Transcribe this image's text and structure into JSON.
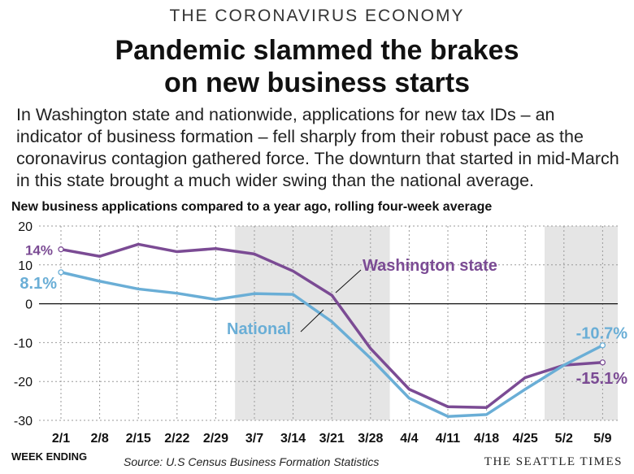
{
  "kicker": "THE CORONAVIRUS ECONOMY",
  "headline_line1": "Pandemic slammed the brakes",
  "headline_line2": "on new business starts",
  "dek": "In Washington state and nationwide, applications for new tax IDs – an indicator of business formation – fell sharply from their robust pace as the coronavirus contagion gathered force. The downturn that started in mid-March in this state brought a much wider swing than the national average.",
  "footer": {
    "week_ending": "WEEK ENDING",
    "source": "Source: U.S Census Business Formation Statistics",
    "brand": "THE SEATTLE TIMES"
  },
  "colors": {
    "washington": "#7b4b94",
    "national": "#6aaed6",
    "shading": "#e5e5e5"
  },
  "chart_data": {
    "type": "line",
    "title": "New business applications compared to a year ago, rolling four-week average",
    "xlabel": "WEEK ENDING",
    "ylabel": "",
    "categories": [
      "2/1",
      "2/8",
      "2/15",
      "2/22",
      "2/29",
      "3/7",
      "3/14",
      "3/21",
      "3/28",
      "4/4",
      "4/11",
      "4/18",
      "4/25",
      "5/2",
      "5/9"
    ],
    "yticks": [
      20,
      10,
      0,
      -10,
      -20,
      -30
    ],
    "ylim": [
      -30,
      20
    ],
    "grid": true,
    "shaded_periods": [
      [
        "3/7",
        "3/28"
      ],
      [
        "5/2",
        "5/9"
      ]
    ],
    "series": [
      {
        "name": "Washington state",
        "values": [
          14,
          12.2,
          15.3,
          13.4,
          14.2,
          12.8,
          8.4,
          2.2,
          -11.5,
          -22,
          -26.5,
          -26.7,
          -19,
          -15.8,
          -15.1
        ]
      },
      {
        "name": "National",
        "values": [
          8.1,
          5.8,
          3.8,
          2.7,
          1.1,
          2.6,
          2.4,
          -4.6,
          -14,
          -24.3,
          -29,
          -28.5,
          -22,
          -15.8,
          -10.7
        ]
      }
    ],
    "annotations": {
      "wa_start": "14%",
      "nat_start": "8.1%",
      "nat_end": "-10.7%",
      "wa_end": "-15.1%"
    }
  }
}
